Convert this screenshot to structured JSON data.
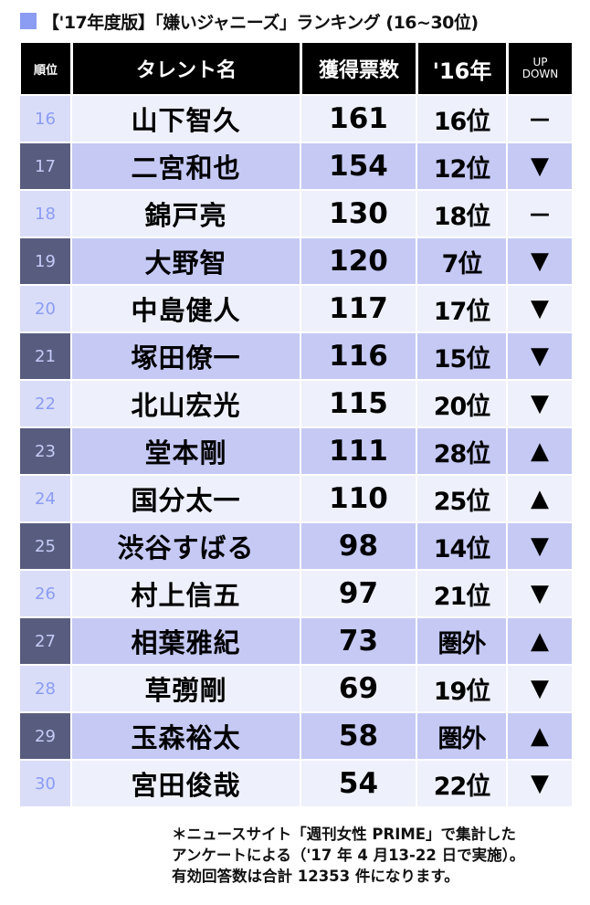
{
  "title": "【'17年度版】「嫌いジャニーズ」ランキング (16~30位)",
  "colors": {
    "title_square": "#8b9cf3",
    "header_bg": "#000000",
    "odd_row": "#eef0fb",
    "even_row": "#c5c9f4",
    "even_rank": "#585d7f"
  },
  "chart_data": {
    "type": "table",
    "columns": [
      "順位",
      "タレント名",
      "獲得票数",
      "'16年",
      "UP DOWN"
    ],
    "rows": [
      [
        "16",
        "山下智久",
        "161",
        "16位",
        "－"
      ],
      [
        "17",
        "二宮和也",
        "154",
        "12位",
        "▼"
      ],
      [
        "18",
        "錦戸亮",
        "130",
        "18位",
        "－"
      ],
      [
        "19",
        "大野智",
        "120",
        "7位",
        "▼"
      ],
      [
        "20",
        "中島健人",
        "117",
        "17位",
        "▼"
      ],
      [
        "21",
        "塚田僚一",
        "116",
        "15位",
        "▼"
      ],
      [
        "22",
        "北山宏光",
        "115",
        "20位",
        "▼"
      ],
      [
        "23",
        "堂本剛",
        "111",
        "28位",
        "▲"
      ],
      [
        "24",
        "国分太一",
        "110",
        "25位",
        "▲"
      ],
      [
        "25",
        "渋谷すばる",
        "98",
        "14位",
        "▼"
      ],
      [
        "26",
        "村上信五",
        "97",
        "21位",
        "▼"
      ],
      [
        "27",
        "相葉雅紀",
        "73",
        "圏外",
        "▲"
      ],
      [
        "28",
        "草彅剛",
        "69",
        "19位",
        "▼"
      ],
      [
        "29",
        "玉森裕太",
        "58",
        "圏外",
        "▲"
      ],
      [
        "30",
        "宮田俊哉",
        "54",
        "22位",
        "▼"
      ]
    ]
  },
  "footnote": [
    "＊ニュースサイト「週刊女性 PRIME」で集計した",
    "アンケートによる（'17 年 4 月13-22 日で実施）。",
    "有効回答数は合計 12353 件になります。"
  ]
}
